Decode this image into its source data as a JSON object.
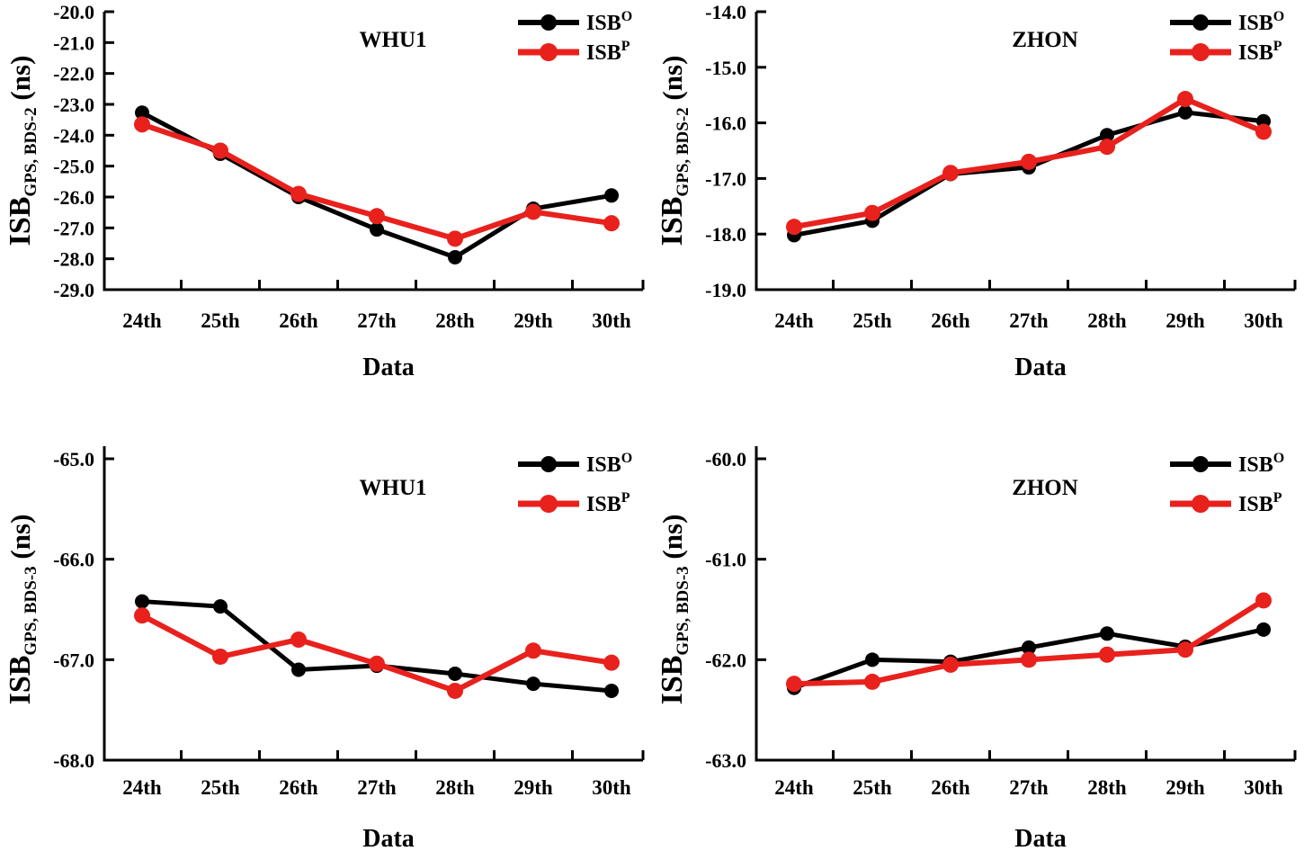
{
  "figure": {
    "background": "#ffffff",
    "layout": "2 rows x 2 columns of line charts"
  },
  "colors": {
    "series_isb_o": "#000000",
    "series_isb_p": "#e8211d",
    "axis": "#000000",
    "text": "#000000"
  },
  "chart_data": [
    {
      "id": "whu1-bds2",
      "type": "line",
      "title": "WHU1",
      "xlabel": "Data",
      "ylabel": {
        "base": "ISB",
        "subscript": "GPS, BDS-2",
        "suffix": " (ns)"
      },
      "categories": [
        "24th",
        "25th",
        "26th",
        "27th",
        "28th",
        "29th",
        "30th"
      ],
      "ylim": [
        -29.0,
        -20.0
      ],
      "yticks": [
        "-20.0",
        "-21.0",
        "-22.0",
        "-23.0",
        "-24.0",
        "-25.0",
        "-26.0",
        "-27.0",
        "-28.0",
        "-29.0"
      ],
      "grid": false,
      "legend_position": "top-right-inside",
      "series": [
        {
          "name": "ISB",
          "superscript": "O",
          "color": "#000000",
          "values": [
            -23.27,
            -24.6,
            -26.0,
            -27.05,
            -27.95,
            -26.38,
            -25.95
          ]
        },
        {
          "name": "ISB",
          "superscript": "P",
          "color": "#e8211d",
          "values": [
            -23.65,
            -24.5,
            -25.9,
            -26.62,
            -27.35,
            -26.48,
            -26.85
          ]
        }
      ]
    },
    {
      "id": "zhon-bds2",
      "type": "line",
      "title": "ZHON",
      "xlabel": "Data",
      "ylabel": {
        "base": "ISB",
        "subscript": "GPS, BDS-2",
        "suffix": " (ns)"
      },
      "categories": [
        "24th",
        "25th",
        "26th",
        "27th",
        "28th",
        "29th",
        "30th"
      ],
      "ylim": [
        -19.0,
        -14.0
      ],
      "yticks": [
        "-14.0",
        "-15.0",
        "-16.0",
        "-17.0",
        "-18.0",
        "-19.0"
      ],
      "grid": false,
      "legend_position": "top-right-inside",
      "series": [
        {
          "name": "ISB",
          "superscript": "O",
          "color": "#000000",
          "values": [
            -18.02,
            -17.76,
            -16.92,
            -16.8,
            -16.22,
            -15.81,
            -15.97
          ]
        },
        {
          "name": "ISB",
          "superscript": "P",
          "color": "#e8211d",
          "values": [
            -17.87,
            -17.62,
            -16.9,
            -16.7,
            -16.43,
            -15.57,
            -16.16
          ]
        }
      ]
    },
    {
      "id": "whu1-bds3",
      "type": "line",
      "title": "WHU1",
      "xlabel": "Data",
      "ylabel": {
        "base": "ISB",
        "subscript": "GPS, BDS-3",
        "suffix": " (ns)"
      },
      "categories": [
        "24th",
        "25th",
        "26th",
        "27th",
        "28th",
        "29th",
        "30th"
      ],
      "ylim": [
        -68.0,
        -65.0
      ],
      "yticks": [
        "-65.0",
        "-66.0",
        "-67.0",
        "-68.0"
      ],
      "grid": false,
      "legend_position": "top-right-inside",
      "series": [
        {
          "name": "ISB",
          "superscript": "O",
          "color": "#000000",
          "values": [
            -66.42,
            -66.47,
            -67.1,
            -67.06,
            -67.14,
            -67.24,
            -67.31
          ]
        },
        {
          "name": "ISB",
          "superscript": "P",
          "color": "#e8211d",
          "values": [
            -66.56,
            -66.97,
            -66.8,
            -67.04,
            -67.31,
            -66.91,
            -67.03
          ]
        }
      ]
    },
    {
      "id": "zhon-bds3",
      "type": "line",
      "title": "ZHON",
      "xlabel": "Data",
      "ylabel": {
        "base": "ISB",
        "subscript": "GPS, BDS-3",
        "suffix": " (ns)"
      },
      "categories": [
        "24th",
        "25th",
        "26th",
        "27th",
        "28th",
        "29th",
        "30th"
      ],
      "ylim": [
        -63.0,
        -60.0
      ],
      "yticks": [
        "-60.0",
        "-61.0",
        "-62.0",
        "-63.0"
      ],
      "grid": false,
      "legend_position": "top-right-inside",
      "series": [
        {
          "name": "ISB",
          "superscript": "O",
          "color": "#000000",
          "values": [
            -62.28,
            -62.0,
            -62.02,
            -61.88,
            -61.74,
            -61.87,
            -61.7
          ]
        },
        {
          "name": "ISB",
          "superscript": "P",
          "color": "#e8211d",
          "values": [
            -62.24,
            -62.22,
            -62.05,
            -62.0,
            -61.95,
            -61.9,
            -61.41
          ]
        }
      ]
    }
  ]
}
